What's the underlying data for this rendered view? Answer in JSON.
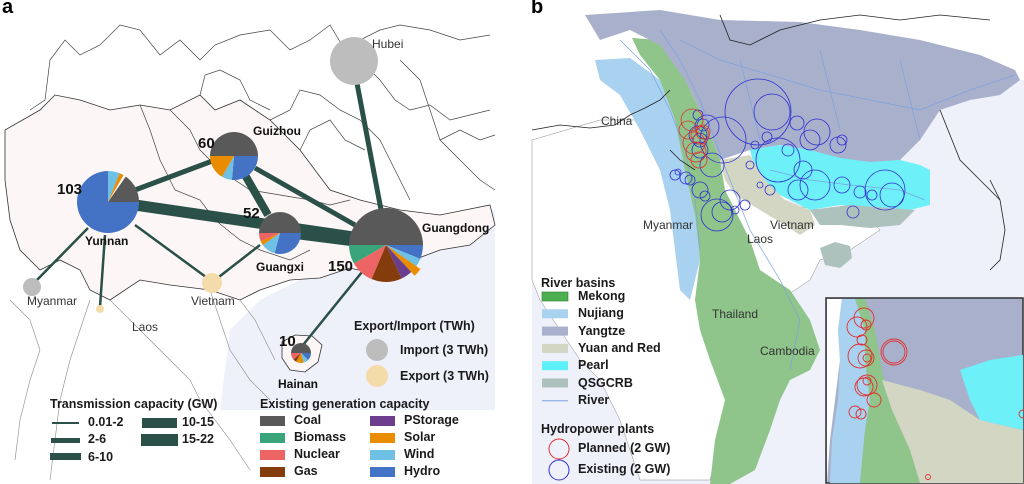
{
  "panel_a": {
    "label": "a",
    "regions": {
      "hubei": "Hubei",
      "guizhou": "Guizhou",
      "yunnan": "Yunnan",
      "guangxi": "Guangxi",
      "guangdong": "Guangdong",
      "hainan": "Hainan",
      "myanmar": "Myanmar",
      "vietnam": "Vietnam",
      "laos": "Laos"
    },
    "capacities": {
      "yunnan": "103",
      "guizhou": "60",
      "guangxi": "52",
      "guangdong": "150",
      "hainan": "10"
    },
    "export_import_legend": {
      "title": "Export/Import (TWh)",
      "import_label": "Import (3 TWh)",
      "export_label": "Export (3 TWh)",
      "import_color": "#bdbdbd",
      "export_color": "#f3dcaa"
    },
    "transmission_legend": {
      "title": "Transmission capacity (GW)",
      "items": [
        "0.01-2",
        "2-6",
        "6-10",
        "10-15",
        "15-22"
      ],
      "color": "#2a5048"
    },
    "generation_legend": {
      "title": "Existing generation capacity",
      "items": [
        {
          "label": "Coal",
          "color": "#595959"
        },
        {
          "label": "Biomass",
          "color": "#3aa57a"
        },
        {
          "label": "Nuclear",
          "color": "#ec6464"
        },
        {
          "label": "Gas",
          "color": "#843c0c"
        },
        {
          "label": "PStorage",
          "color": "#6b3e8e"
        },
        {
          "label": "Solar",
          "color": "#ea8c00"
        },
        {
          "label": "Wind",
          "color": "#6ec1e4"
        },
        {
          "label": "Hydro",
          "color": "#4472c4"
        }
      ]
    }
  },
  "panel_b": {
    "label": "b",
    "countries": {
      "china": "China",
      "myanmar": "Myanmar",
      "laos": "Laos",
      "vietnam": "Vietnam",
      "thailand": "Thailand",
      "cambodia": "Cambodia"
    },
    "river_legend": {
      "title": "River basins",
      "items": [
        {
          "label": "Mekong",
          "color": "#4caf50"
        },
        {
          "label": "Nujiang",
          "color": "#a9d2f0"
        },
        {
          "label": "Yangtze",
          "color": "#a8b0cc"
        },
        {
          "label": "Yuan and Red",
          "color": "#d3d6c3"
        },
        {
          "label": "Pearl",
          "color": "#5ef0f8"
        },
        {
          "label": "QSGCRB",
          "color": "#adc2bd"
        },
        {
          "label": "River",
          "color": "#7aa3e0"
        }
      ]
    },
    "hydro_legend": {
      "title": "Hydropower plants",
      "planned_label": "Planned (2 GW)",
      "existing_label": "Existing (2 GW)",
      "planned_color": "#e03030",
      "existing_color": "#3030d0"
    }
  }
}
